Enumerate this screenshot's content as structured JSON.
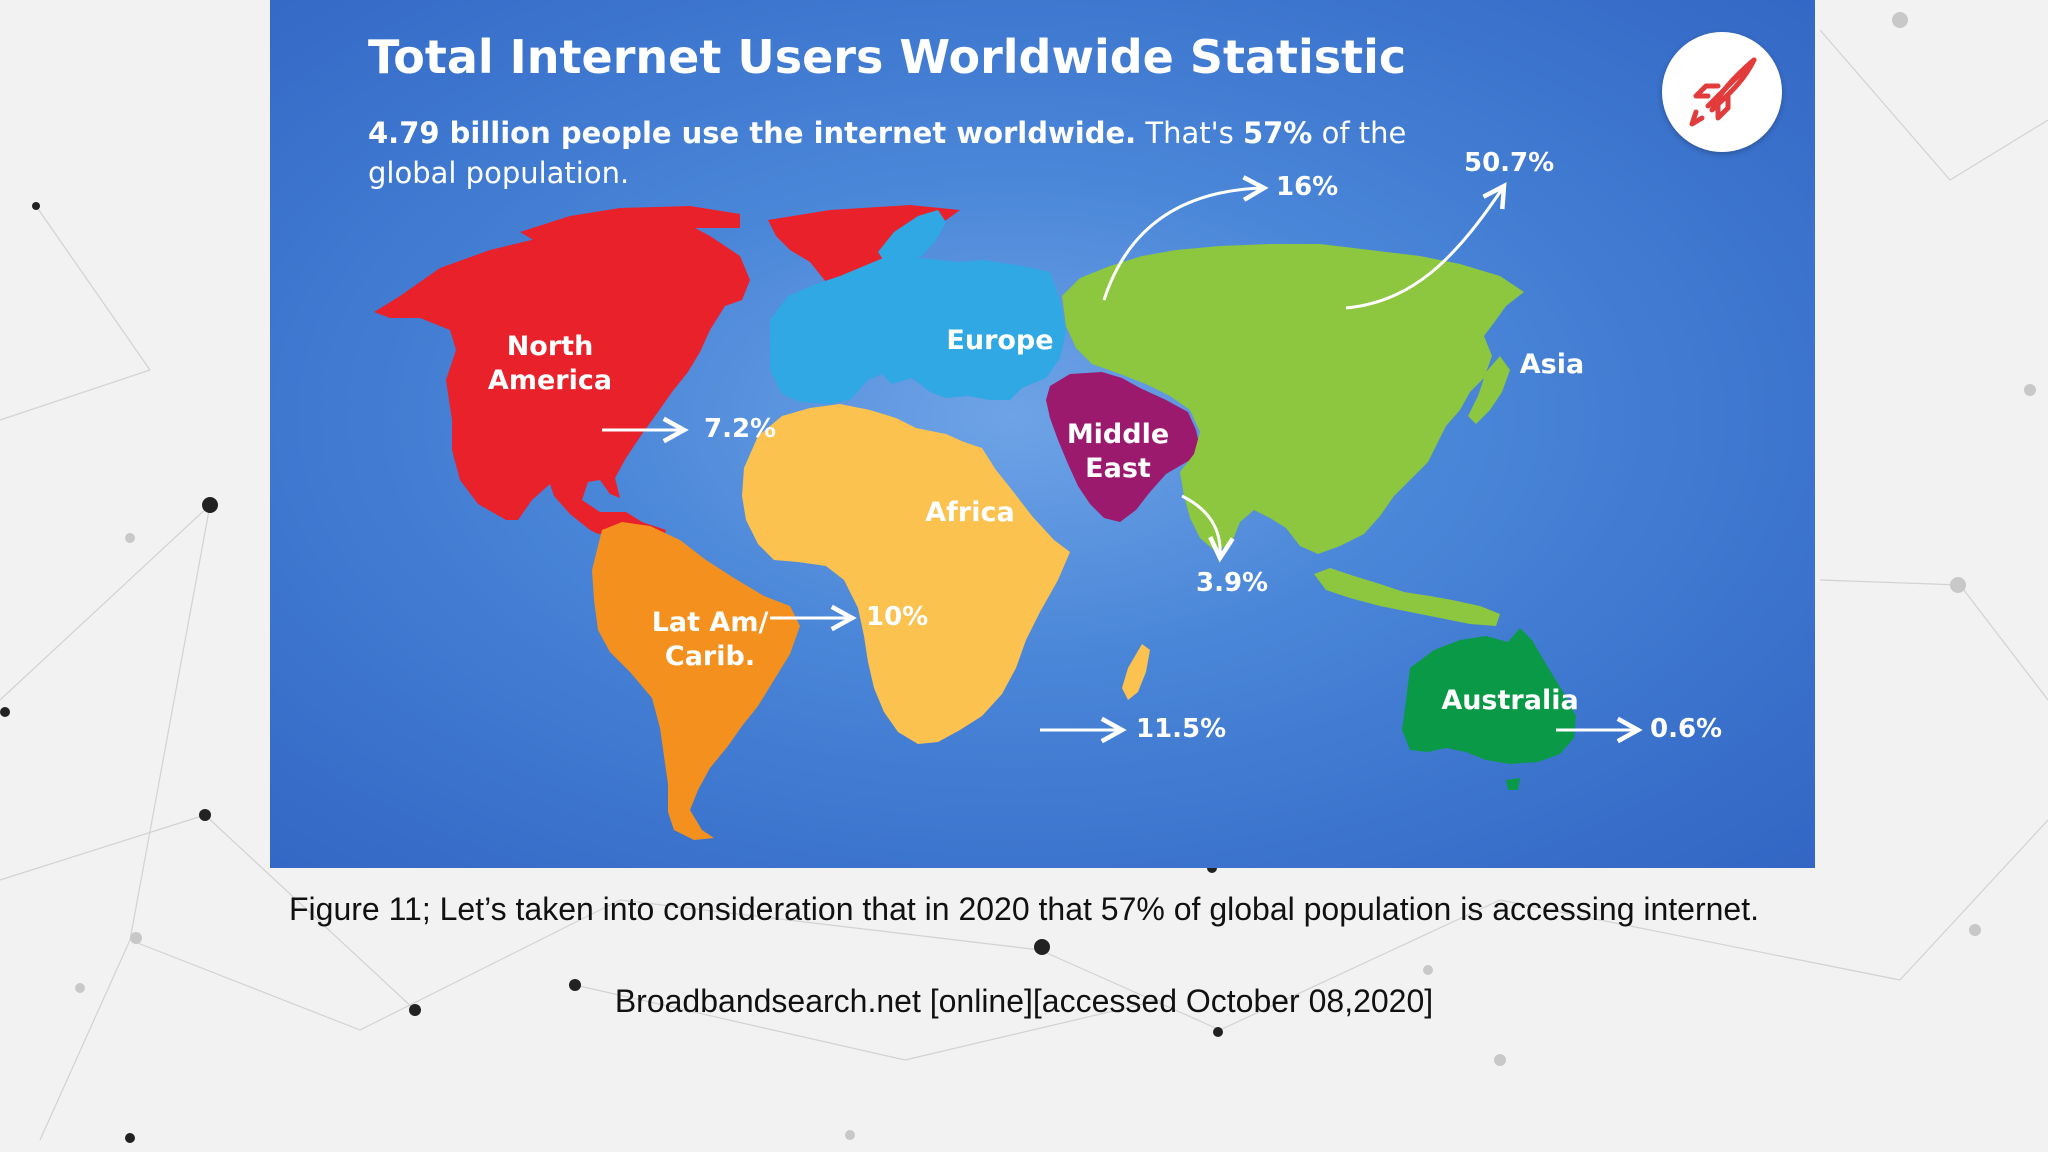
{
  "infographic": {
    "title": "Total Internet Users Worldwide Statistic",
    "subtitle_bold": "4.79 billion people use the internet worldwide.",
    "subtitle_mid": " That's ",
    "subtitle_pct": "57%",
    "subtitle_end": " of the global population.",
    "logo_icon": "rocket-icon",
    "colors": {
      "background": "#3d74cf",
      "north_america": "#e8212b",
      "latin_america": "#f4901e",
      "europe": "#2fa8e3",
      "africa": "#fbc24f",
      "middle_east": "#9b1a6e",
      "asia": "#8dc63f",
      "australia": "#0a9a47",
      "logo_accent": "#e23b3b"
    },
    "regions": [
      {
        "id": "north_america",
        "name_line1": "North",
        "name_line2": "America",
        "share": "7.2%"
      },
      {
        "id": "latin_america",
        "name_line1": "Lat Am/",
        "name_line2": "Carib.",
        "share": "10%"
      },
      {
        "id": "europe",
        "name_line1": "Europe",
        "share": "16%"
      },
      {
        "id": "africa",
        "name_line1": "Africa",
        "share": "11.5%"
      },
      {
        "id": "middle_east",
        "name_line1": "Middle",
        "name_line2": "East",
        "share": "3.9%"
      },
      {
        "id": "asia",
        "name_line1": "Asia",
        "share": "50.7%"
      },
      {
        "id": "australia",
        "name_line1": "Australia",
        "share": "0.6%"
      }
    ]
  },
  "caption": {
    "figure": "Figure 11; Let’s taken into consideration that in 2020 that 57% of global population is accessing internet.",
    "source": "Broadbandsearch.net [online][accessed October 08,2020]"
  }
}
